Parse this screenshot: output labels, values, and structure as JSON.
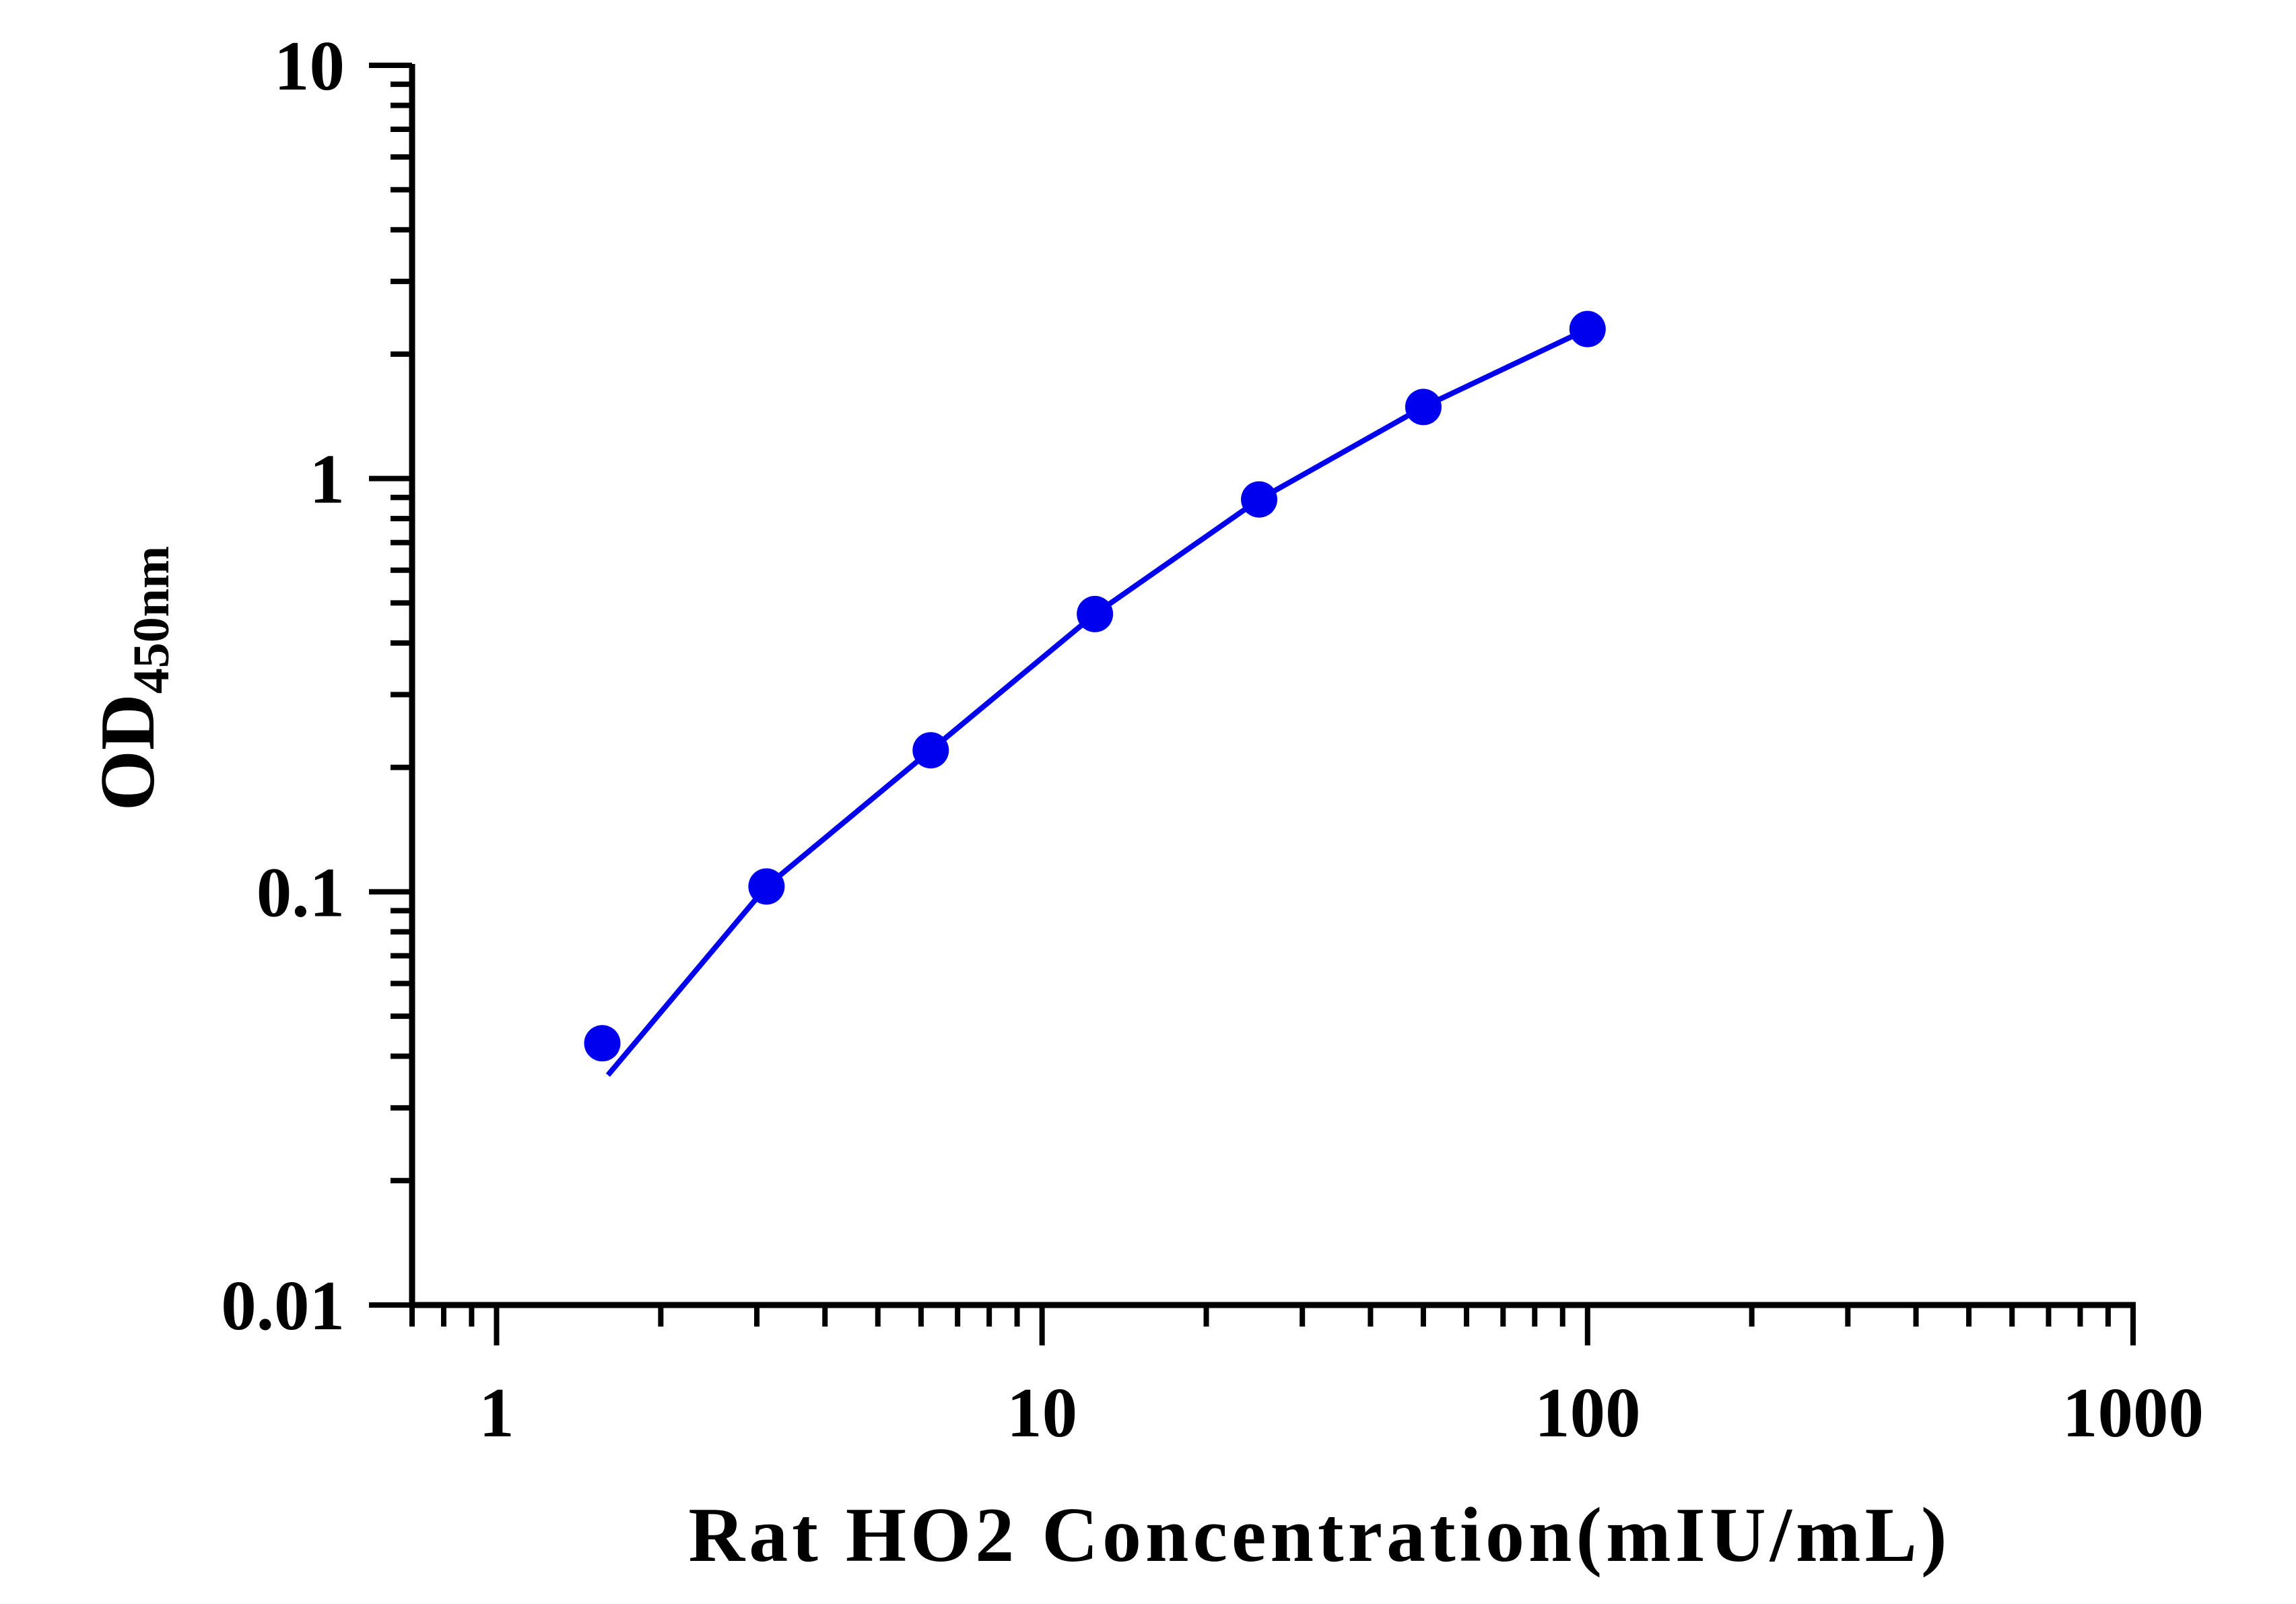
{
  "chart_data": {
    "type": "scatter",
    "xlabel": "Rat HO2 Concentration(mIU/mL)",
    "ylabel": "OD",
    "ylabel_subscript": "450nm",
    "x_scale": "log",
    "y_scale": "log",
    "xlim": [
      0.7,
      1000
    ],
    "ylim": [
      0.01,
      10
    ],
    "x_tick_labels": [
      "1",
      "10",
      "100",
      "1000"
    ],
    "y_tick_labels": [
      "0.01",
      "0.1",
      "1",
      "10"
    ],
    "grid": false,
    "legend": "none",
    "series": [
      {
        "color": "#0000ee",
        "x": [
          1.5625,
          3.125,
          6.25,
          12.5,
          25,
          50,
          100
        ],
        "y": [
          0.043,
          0.103,
          0.22,
          0.47,
          0.89,
          1.49,
          2.3
        ],
        "fit_line": {
          "x": [
            1.6,
            3.125,
            6.25,
            12.5,
            25,
            50,
            100
          ],
          "y": [
            0.036,
            0.103,
            0.22,
            0.47,
            0.89,
            1.49,
            2.3
          ]
        }
      }
    ]
  }
}
